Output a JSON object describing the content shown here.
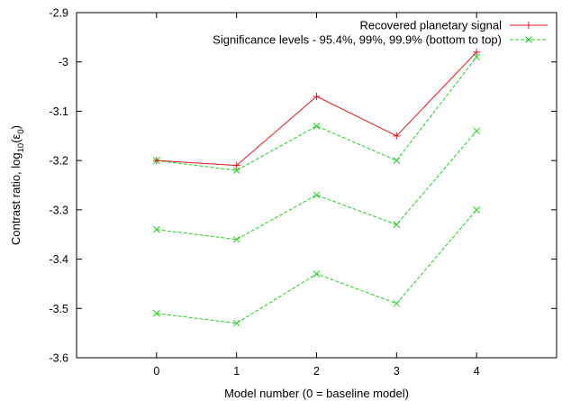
{
  "chart_data": {
    "type": "line",
    "title": "",
    "xlabel": "Model number (0 = baseline model)",
    "ylabel": {
      "prefix": "Contrast ratio, log",
      "subscript": "10",
      "suffix_open": "(",
      "epsilon": "ε",
      "epsilon_sub": "0",
      "suffix_close": ")"
    },
    "xlim": [
      -1,
      5
    ],
    "ylim": [
      -3.6,
      -2.9
    ],
    "xticks": [
      0,
      1,
      2,
      3,
      4
    ],
    "yticks": [
      -2.9,
      -3.0,
      -3.1,
      -3.2,
      -3.3,
      -3.4,
      -3.5,
      -3.6
    ],
    "ytick_labels": [
      "-2.9",
      "-3",
      "-3.1",
      "-3.2",
      "-3.3",
      "-3.4",
      "-3.5",
      "-3.6"
    ],
    "grid": false,
    "legend_position": "top-right",
    "series": [
      {
        "name": "Recovered planetary signal",
        "color": "#e8141e",
        "marker": "plus",
        "dash": "solid",
        "x": [
          0,
          1,
          2,
          3,
          4
        ],
        "y": [
          -3.2,
          -3.21,
          -3.07,
          -3.15,
          -2.98
        ]
      },
      {
        "name": "Significance levels - 95.4%, 99%, 99.9% (bottom to top)",
        "color": "#19d31c",
        "marker": "cross",
        "dash": "dashed",
        "x": [
          0,
          1,
          2,
          3,
          4
        ],
        "y": [
          -3.2,
          -3.22,
          -3.13,
          -3.2,
          -2.99
        ]
      },
      {
        "name": "",
        "color": "#19d31c",
        "marker": "cross",
        "dash": "dashed",
        "x": [
          0,
          1,
          2,
          3,
          4
        ],
        "y": [
          -3.34,
          -3.36,
          -3.27,
          -3.33,
          -3.14
        ]
      },
      {
        "name": "",
        "color": "#19d31c",
        "marker": "cross",
        "dash": "dashed",
        "x": [
          0,
          1,
          2,
          3,
          4
        ],
        "y": [
          -3.51,
          -3.53,
          -3.43,
          -3.49,
          -3.3
        ]
      }
    ]
  }
}
